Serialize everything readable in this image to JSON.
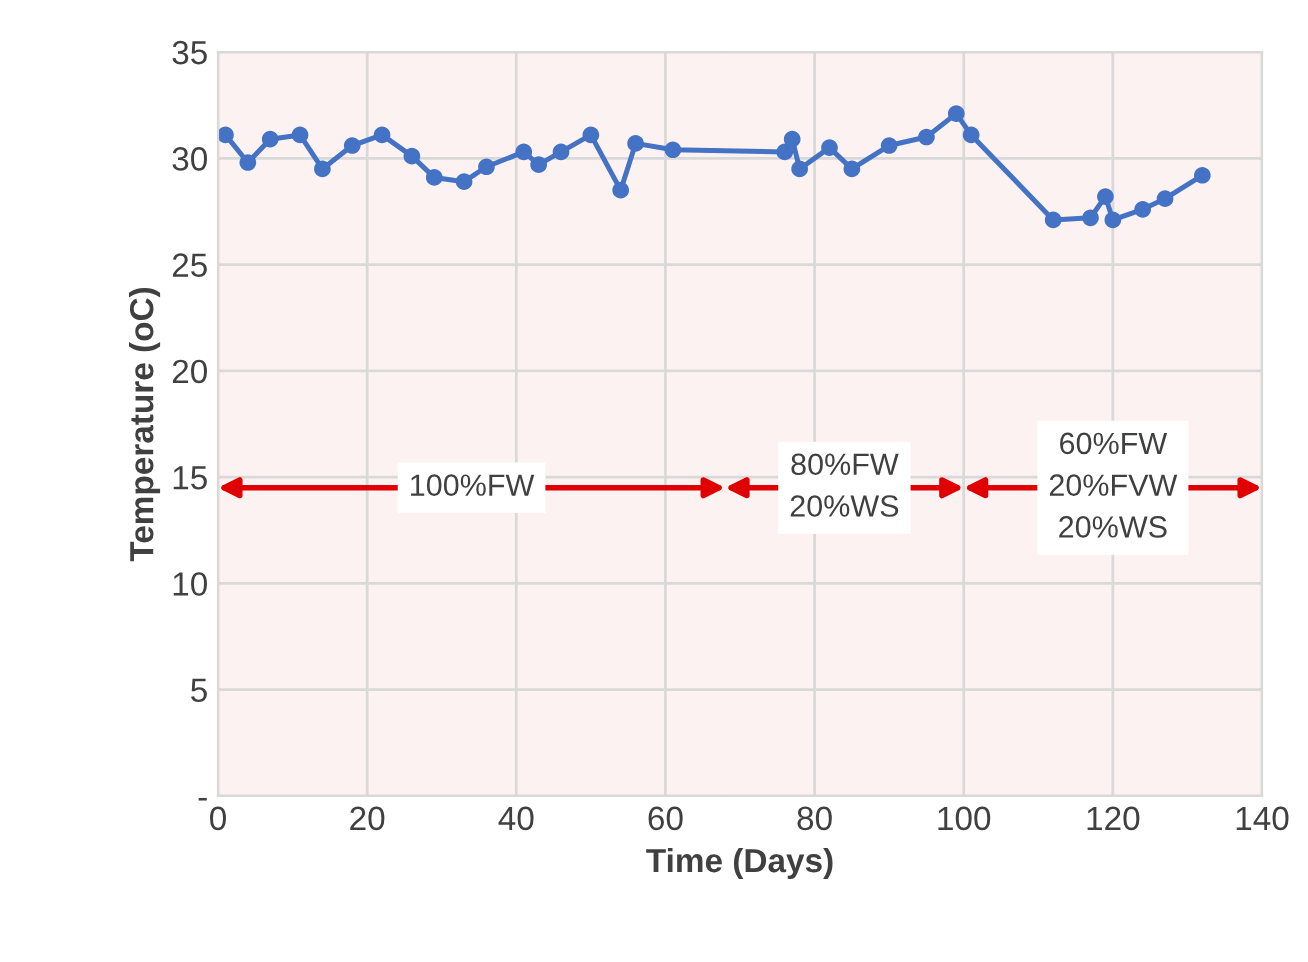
{
  "chart_data": {
    "type": "line",
    "xlabel": "Time (Days)",
    "ylabel": "Temperature (oC)",
    "x": [
      1,
      4,
      7,
      11,
      14,
      18,
      22,
      26,
      29,
      33,
      36,
      41,
      43,
      46,
      50,
      54,
      56,
      61,
      76,
      77,
      78,
      82,
      85,
      90,
      95,
      99,
      101,
      112,
      117,
      119,
      120,
      124,
      127,
      132
    ],
    "series": [
      {
        "color": "#4472c4",
        "values": [
          31.1,
          29.8,
          30.9,
          31.1,
          29.5,
          30.6,
          31.1,
          30.1,
          29.1,
          28.9,
          29.6,
          30.3,
          29.7,
          30.3,
          31.1,
          28.5,
          30.7,
          30.4,
          30.3,
          30.9,
          29.5,
          30.5,
          29.5,
          30.6,
          31.0,
          32.1,
          31.1,
          27.1,
          27.2,
          28.2,
          27.1,
          27.6,
          28.1,
          29.2
        ]
      }
    ],
    "xlim": [
      0,
      140
    ],
    "xticks": [
      0,
      20,
      40,
      60,
      80,
      100,
      120,
      140
    ],
    "ylim": [
      0,
      35
    ],
    "yticks": [
      {
        "value": 0,
        "label": "-"
      },
      5,
      10,
      15,
      20,
      25,
      30,
      35
    ],
    "bands": [
      {
        "axis": "x",
        "from": 0,
        "to": 68,
        "label": "100%FW",
        "color": "#e00000"
      },
      {
        "axis": "x",
        "from": 68,
        "to": 100,
        "label": "80%FW\n20%WS",
        "color": "#e00000"
      },
      {
        "axis": "x",
        "from": 100,
        "to": 140,
        "label": "60%FW\n20%FVW\n20%WS",
        "color": "#e00000"
      }
    ],
    "grid": true,
    "marker": "circle",
    "line_style": "solid",
    "legend": false
  }
}
